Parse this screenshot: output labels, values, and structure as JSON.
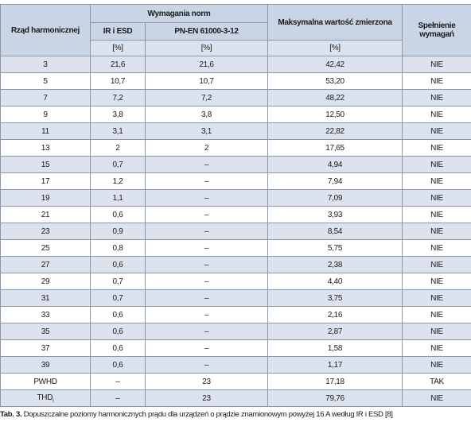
{
  "header": {
    "row_label": "Rząd harmonicznej",
    "norms": "Wymagania norm",
    "norm_1": "IR i ESD",
    "norm_2": "PN-EN 61000-3-12",
    "measured": "Maksymalna wartość zmierzona",
    "compliance": "Spełnienie wymagań",
    "units": [
      "[%]",
      "[%]",
      "[%]"
    ]
  },
  "table": {
    "rows": [
      [
        "3",
        "21,6",
        "21,6",
        "42,42",
        "NIE"
      ],
      [
        "5",
        "10,7",
        "10,7",
        "53,20",
        "NIE"
      ],
      [
        "7",
        "7,2",
        "7,2",
        "48,22",
        "NIE"
      ],
      [
        "9",
        "3,8",
        "3,8",
        "12,50",
        "NIE"
      ],
      [
        "11",
        "3,1",
        "3,1",
        "22,82",
        "NIE"
      ],
      [
        "13",
        "2",
        "2",
        "17,65",
        "NIE"
      ],
      [
        "15",
        "0,7",
        "–",
        "4,94",
        "NIE"
      ],
      [
        "17",
        "1,2",
        "–",
        "7,94",
        "NIE"
      ],
      [
        "19",
        "1,1",
        "–",
        "7,09",
        "NIE"
      ],
      [
        "21",
        "0,6",
        "–",
        "3,93",
        "NIE"
      ],
      [
        "23",
        "0,9",
        "–",
        "8,54",
        "NIE"
      ],
      [
        "25",
        "0,8",
        "–",
        "5,75",
        "NIE"
      ],
      [
        "27",
        "0,6",
        "–",
        "2,38",
        "NIE"
      ],
      [
        "29",
        "0,7",
        "–",
        "4,40",
        "NIE"
      ],
      [
        "31",
        "0,7",
        "–",
        "3,75",
        "NIE"
      ],
      [
        "33",
        "0,6",
        "–",
        "2,16",
        "NIE"
      ],
      [
        "35",
        "0,6",
        "–",
        "2,87",
        "NIE"
      ],
      [
        "37",
        "0,6",
        "–",
        "1,58",
        "NIE"
      ],
      [
        "39",
        "0,6",
        "–",
        "1,17",
        "NIE"
      ],
      [
        "PWHD",
        "–",
        "23",
        "17,18",
        "TAK"
      ],
      [
        {
          "main": "THD",
          "sub": "I"
        },
        "–",
        "23",
        "79,76",
        "NIE"
      ]
    ]
  },
  "caption": {
    "label": "Tab. 3.",
    "text": "Dopuszczalne poziomy harmonicznych prądu dla urządzeń o prądzie znamionowym powyżej 16 A według IR i ESD [8]"
  }
}
